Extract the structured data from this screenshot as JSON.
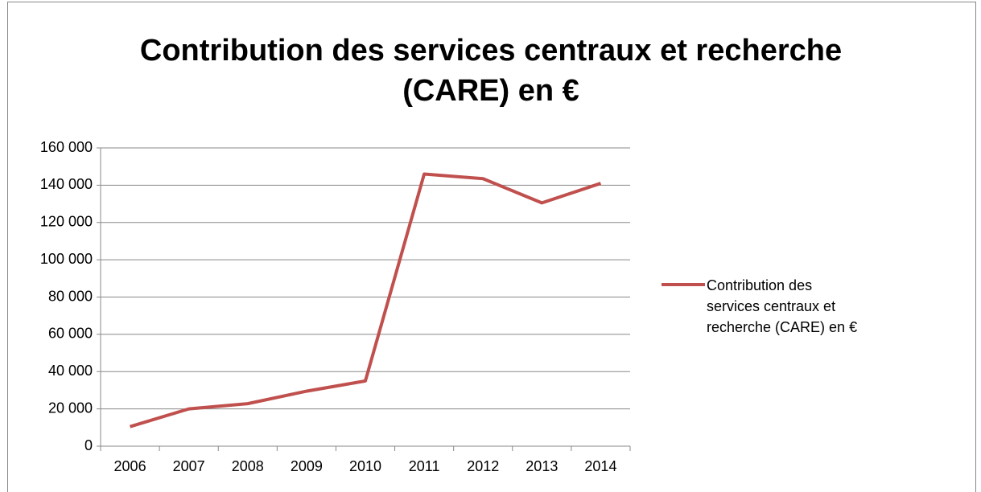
{
  "chart_data": {
    "type": "line",
    "title": "Contribution des services centraux et recherche (CARE) en €",
    "categories": [
      "2006",
      "2007",
      "2008",
      "2009",
      "2010",
      "2011",
      "2012",
      "2013",
      "2014"
    ],
    "series": [
      {
        "name": "Contribution des services centraux et recherche  (CARE) en €",
        "color": "#c0504d",
        "values": [
          10500,
          20000,
          22800,
          29500,
          35000,
          146000,
          143500,
          130500,
          141000
        ]
      }
    ],
    "ylim": [
      0,
      160000
    ],
    "yticks": [
      0,
      {
        "value": 20000,
        "label": "20 000"
      },
      {
        "value": 40000,
        "label": "40 000"
      },
      {
        "value": 60000,
        "label": "60 000"
      },
      {
        "value": 80000,
        "label": "80 000"
      },
      {
        "value": 100000,
        "label": "100 000"
      },
      {
        "value": 120000,
        "label": "120 000"
      },
      {
        "value": 140000,
        "label": "140 000"
      },
      {
        "value": 160000,
        "label": "160 000"
      }
    ],
    "grid": true,
    "legend": "right"
  }
}
